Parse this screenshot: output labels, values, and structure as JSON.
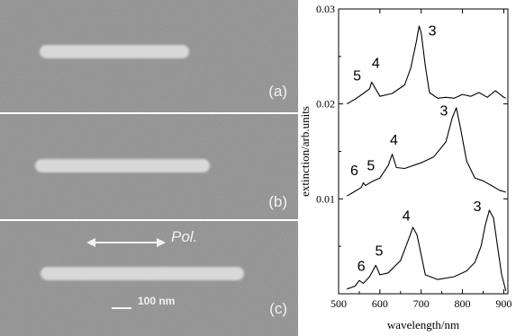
{
  "sem_panels": [
    {
      "label": "(a)"
    },
    {
      "label": "(b)"
    },
    {
      "label": "(c)",
      "polarization_label": "Pol.",
      "scale_bar_label": "100 nm"
    }
  ],
  "colors": {
    "sem_background": "#7d7d7d",
    "nanorod": "#dcdcdc",
    "divider": "#ffffff",
    "spectrum_line": "#000000"
  },
  "chart_data": {
    "type": "line",
    "title": "",
    "xlabel": "wavelength/nm",
    "ylabel": "extinction/arb.units",
    "xlim": [
      500,
      910
    ],
    "ylim": [
      0,
      0.03
    ],
    "x_ticks": [
      500,
      600,
      700,
      800,
      900
    ],
    "y_ticks": [
      0.01,
      0.02,
      0.03
    ],
    "x_tick_labels": [
      "500",
      "600",
      "700",
      "800",
      "900"
    ],
    "y_tick_labels": [
      "0.01",
      "0.02",
      "0.03"
    ],
    "grid": false,
    "series": [
      {
        "panel": "a",
        "x": [
          520,
          540,
          560,
          575,
          580,
          588,
          600,
          630,
          660,
          675,
          688,
          695,
          700,
          710,
          720,
          740,
          760,
          780,
          800,
          820,
          840,
          860,
          880,
          900,
          905
        ],
        "y": [
          0.02,
          0.0205,
          0.0211,
          0.0216,
          0.0223,
          0.0217,
          0.0208,
          0.0211,
          0.022,
          0.0238,
          0.0265,
          0.0282,
          0.0275,
          0.024,
          0.0212,
          0.0206,
          0.0207,
          0.0206,
          0.021,
          0.0208,
          0.0212,
          0.0207,
          0.0214,
          0.0207,
          0.0206
        ]
      },
      {
        "panel": "b",
        "x": [
          520,
          540,
          555,
          560,
          565,
          580,
          600,
          620,
          630,
          640,
          660,
          700,
          730,
          760,
          775,
          785,
          795,
          810,
          830,
          850,
          870,
          890,
          905
        ],
        "y": [
          0.0103,
          0.0108,
          0.0112,
          0.0117,
          0.0114,
          0.0118,
          0.0122,
          0.0135,
          0.0147,
          0.0133,
          0.0132,
          0.0138,
          0.0144,
          0.016,
          0.0185,
          0.0196,
          0.0175,
          0.014,
          0.0122,
          0.0119,
          0.0114,
          0.0109,
          0.0107
        ]
      },
      {
        "panel": "c",
        "x": [
          520,
          540,
          550,
          560,
          575,
          590,
          600,
          620,
          650,
          670,
          680,
          690,
          710,
          740,
          780,
          810,
          830,
          845,
          855,
          865,
          875,
          885,
          895,
          905
        ],
        "y": [
          0.0005,
          0.0008,
          0.0014,
          0.0011,
          0.0018,
          0.003,
          0.002,
          0.0022,
          0.0035,
          0.0058,
          0.007,
          0.0062,
          0.002,
          0.0015,
          0.0018,
          0.0024,
          0.0033,
          0.005,
          0.0072,
          0.0088,
          0.008,
          0.005,
          0.002,
          0.0003
        ]
      }
    ],
    "annotations": [
      {
        "panel": "a",
        "text": "5",
        "x": 545,
        "y": 0.0225
      },
      {
        "panel": "a",
        "text": "4",
        "x": 590,
        "y": 0.0238
      },
      {
        "panel": "a",
        "text": "3",
        "x": 727,
        "y": 0.0272
      },
      {
        "panel": "b",
        "text": "6",
        "x": 538,
        "y": 0.0125
      },
      {
        "panel": "b",
        "text": "5",
        "x": 578,
        "y": 0.013
      },
      {
        "panel": "b",
        "text": "4",
        "x": 634,
        "y": 0.0157
      },
      {
        "panel": "b",
        "text": "3",
        "x": 755,
        "y": 0.0188
      },
      {
        "panel": "c",
        "text": "6",
        "x": 555,
        "y": 0.0024
      },
      {
        "panel": "c",
        "text": "5",
        "x": 598,
        "y": 0.004
      },
      {
        "panel": "c",
        "text": "4",
        "x": 664,
        "y": 0.0077
      },
      {
        "panel": "c",
        "text": "3",
        "x": 836,
        "y": 0.0087
      }
    ]
  }
}
